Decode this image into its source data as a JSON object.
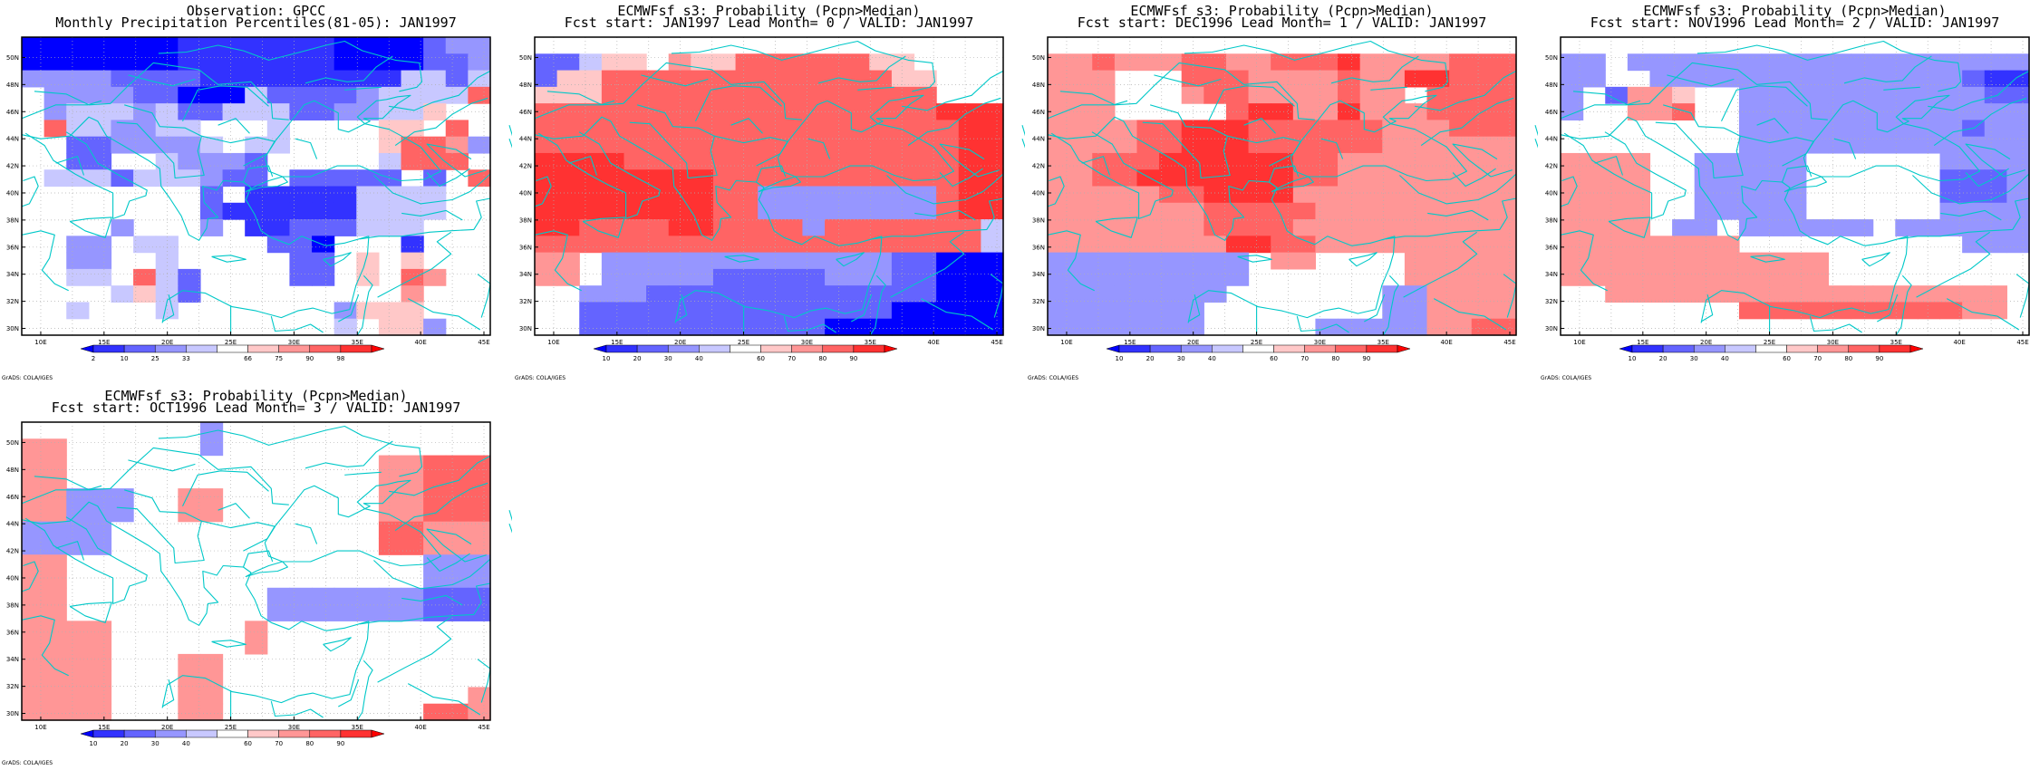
{
  "colors": {
    "coast": "#00c8c8",
    "scale": [
      "#0000ff",
      "#3232ff",
      "#6464ff",
      "#9696ff",
      "#c8c8ff",
      "#ffffff",
      "#ffc8c8",
      "#ff9696",
      "#ff6464",
      "#ff3232",
      "#ff0000"
    ]
  },
  "axes": {
    "lon_labels": [
      "10E",
      "15E",
      "20E",
      "25E",
      "30E",
      "35E",
      "40E",
      "45E"
    ],
    "lat_labels": [
      "30N",
      "32N",
      "34N",
      "36N",
      "38N",
      "40N",
      "42N",
      "44N",
      "46N",
      "48N",
      "50N"
    ],
    "lon_range": [
      8.5,
      45.5
    ],
    "lat_range": [
      29.5,
      51.5
    ],
    "grid_step_deg": 2.5
  },
  "credit": "GrADS: COLA/IGES",
  "panels": [
    {
      "title_lines": [
        "Observation: GPCC",
        "Monthly Precipitation Percentiles(81-05): JAN1997"
      ],
      "colorbar_labels": [
        "2",
        "10",
        "25",
        "33",
        "66",
        "75",
        "90",
        "98"
      ],
      "grid": [
        "000000011111110000233",
        "000000011111110000223",
        "333322221111111114424",
        "533332200042222344448",
        "534443422444223344655",
        "584433445554555566585",
        "552233334544555568873",
        "552255433325555548885",
        "544424443225222225258",
        "555555552511111444455",
        "555555552111111444455",
        "555535553511222444555",
        "553354455552205551555",
        "553355455555225656555",
        "554458425555225658755",
        "555546425555555557555",
        "554555455555553666555",
        "555555555555554566355"
      ]
    },
    {
      "title_lines": [
        "ECMWFsf s3: Probability (Pcpn>Median)",
        "Fcst start: JAN1997   Lead Month= 0 / VALID: JAN1997"
      ],
      "colorbar_labels": [
        "10",
        "20",
        "30",
        "40",
        "60",
        "70",
        "80",
        "90"
      ],
      "grid": [
        "555555555555555555555",
        "224665766888888665555",
        "266888888888888866555",
        "666888888888888888555",
        "888888888888888888999",
        "888888888888888888899",
        "888888888888888888899",
        "999988888888888888899",
        "999999998888888888899",
        "999999998833333333899",
        "999999998833333333899",
        "998888998888388888884",
        "888888888888888888884",
        "775333333333333322000",
        "775333332222233322000",
        "553332222222222222000",
        "552222222222222200000",
        "552222222222200000000"
      ]
    },
    {
      "title_lines": [
        "ECMWFsf s3: Probability (Pcpn>Median)",
        "Fcst start: DEC1996   Lead Month= 1 / VALID: JAN1997"
      ],
      "colorbar_labels": [
        "10",
        "20",
        "30",
        "40",
        "60",
        "70",
        "80",
        "90"
      ],
      "grid": [
        "555555555555555555555",
        "778777887788897777888",
        "777555888777787799888",
        "777555788777787758888",
        "777555558997797778888",
        "777788999888888777888",
        "777788999888888777777",
        "778889999998877777777",
        "778899999998877777777",
        "777778899997777777777",
        "777777788888777777777",
        "777777788887777777777",
        "777777779988777777777",
        "333333333577555577777",
        "333333333555555577777",
        "333333335555555337777",
        "333333355555555337777",
        "333333355555333337788"
      ]
    },
    {
      "title_lines": [
        "ECMWFsf s3: Probability (Pcpn>Median)",
        "Fcst start: NOV1996   Lead Month= 2 / VALID: JAN1997"
      ],
      "colorbar_labels": [
        "10",
        "20",
        "30",
        "40",
        "60",
        "70",
        "80",
        "90"
      ],
      "grid": [
        "555555555555555555555",
        "335333333333333333333",
        "335533333333333333211",
        "352776553333333333322",
        "355778553333333333333",
        "555555553333333333233",
        "555555553333333333333",
        "777755333335555553333",
        "777755333335555552223",
        "777755333335555552223",
        "777755333335555553333",
        "777753353333335333333",
        "777777775555555555333",
        "777777777777555555555",
        "777777777777555555555",
        "557777777777777777775",
        "555555558888888888775",
        "555555555555555555555"
      ]
    },
    {
      "title_lines": [
        "ECMWFsf s3: Probability (Pcpn>Median)",
        "Fcst start: OCT1996   Lead Month= 3 / VALID: JAN1997"
      ],
      "colorbar_labels": [
        "10",
        "20",
        "30",
        "40",
        "60",
        "70",
        "80",
        "90"
      ],
      "grid": [
        "555555553555555555555",
        "775555553555555555555",
        "775555555555555577888",
        "775555555555555577888",
        "773335577555555577888",
        "773335577555555577888",
        "333355555555555588777",
        "333355555555555588777",
        "775555555555555555333",
        "775555555555555555333",
        "775555555553333333222",
        "775555555553333333222",
        "777755555575555555555",
        "777755555575555555555",
        "777755577555555555555",
        "777755577555555555555",
        "777755577555555555557",
        "777755577555555555887"
      ]
    }
  ]
}
